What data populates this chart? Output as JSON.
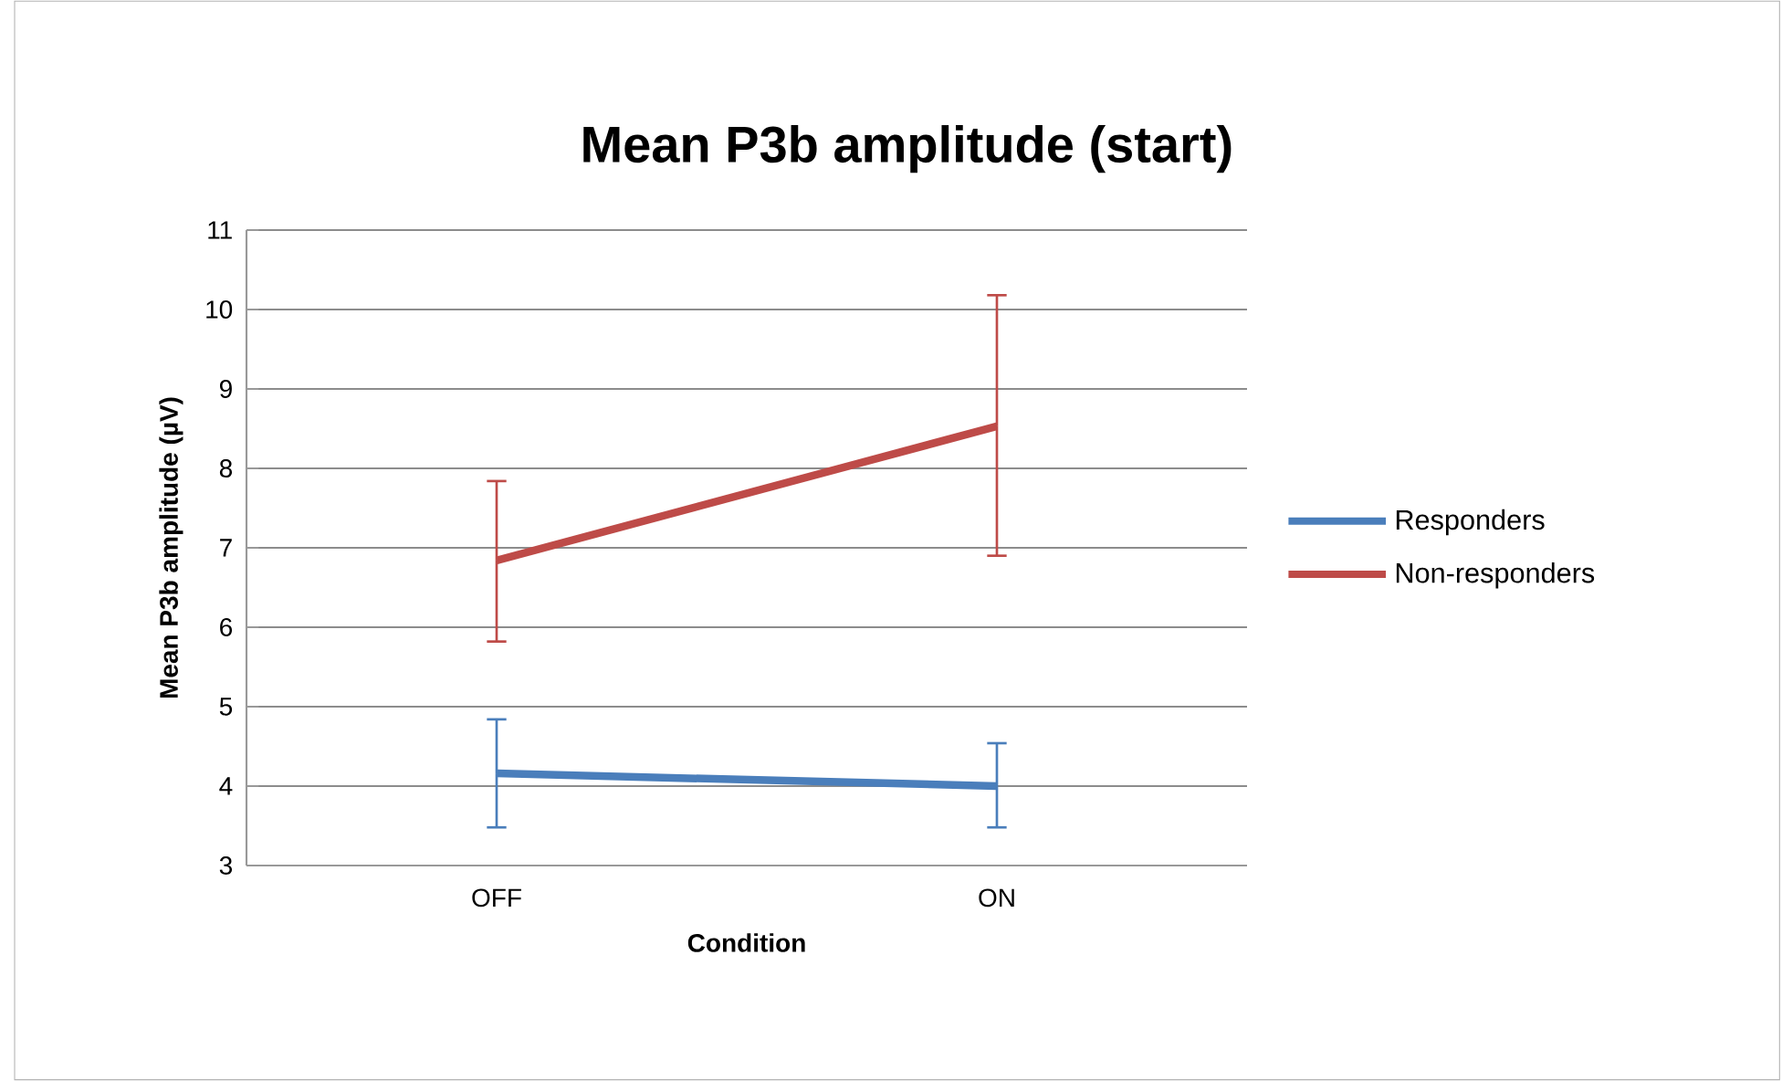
{
  "chart_data": {
    "type": "line",
    "title": "Mean P3b amplitude (start)",
    "xlabel": "Condition",
    "ylabel": "Mean P3b amplitude (µV)",
    "categories": [
      "OFF",
      "ON"
    ],
    "series": [
      {
        "name": "Responders",
        "color": "#4a7ebb",
        "values": [
          4.16,
          4.0
        ],
        "errors": [
          [
            3.48,
            4.84
          ],
          [
            3.48,
            4.54
          ]
        ]
      },
      {
        "name": "Non-responders",
        "color": "#be4b48",
        "values": [
          6.84,
          8.53
        ],
        "errors": [
          [
            5.82,
            7.84
          ],
          [
            6.9,
            10.18
          ]
        ]
      }
    ],
    "ylim": [
      3,
      11
    ],
    "yticks": [
      3,
      4,
      5,
      6,
      7,
      8,
      9,
      10,
      11
    ],
    "grid": "y",
    "legend": "right"
  }
}
